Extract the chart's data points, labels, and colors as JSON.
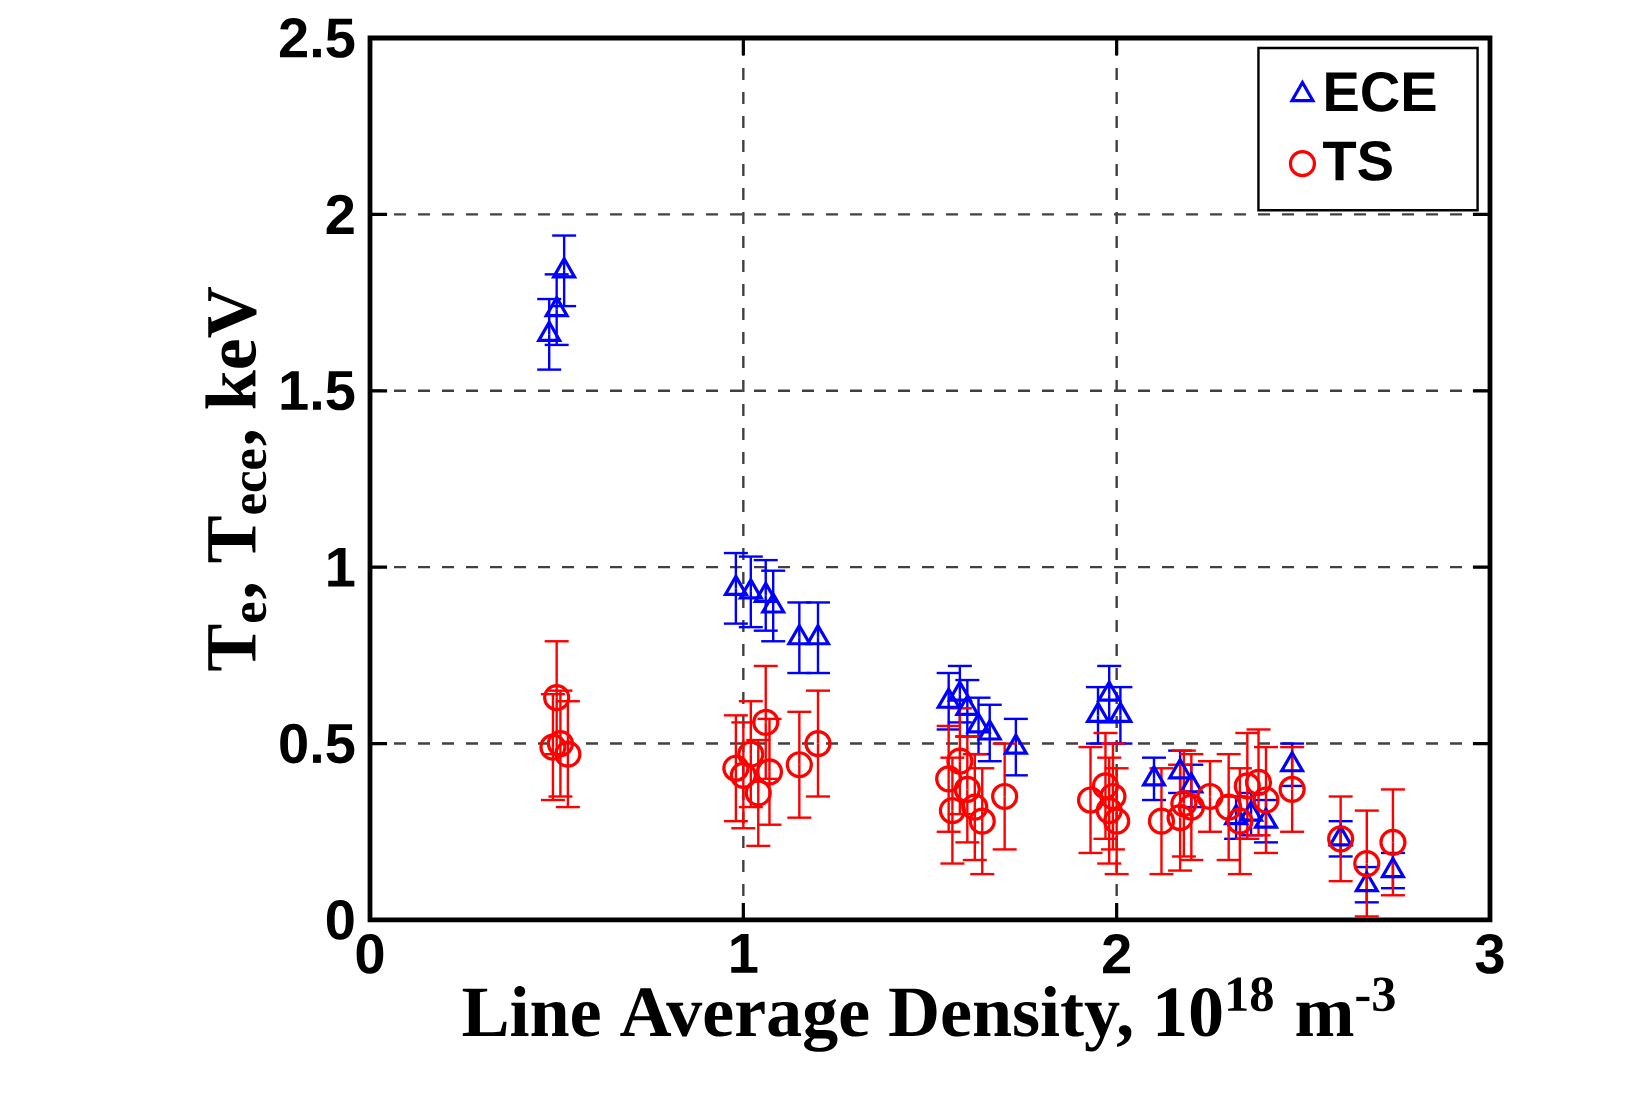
{
  "chart_data": {
    "type": "scatter",
    "xlabel": "Line Average Density, 10$^{18}$ m$^{-3}$",
    "ylabel": "T$_{e}$, T$_{ece}$, keV",
    "xlim": [
      0,
      3
    ],
    "ylim": [
      0,
      2.5
    ],
    "xticks": [
      0,
      1,
      2,
      3
    ],
    "yticks": [
      0,
      0.5,
      1,
      1.5,
      2,
      2.5
    ],
    "grid": true,
    "legend": "top right",
    "series": [
      {
        "name": "ECE",
        "color": "#0000ff",
        "marker": "triangle",
        "x": [
          0.48,
          0.5,
          0.52,
          0.98,
          1.02,
          1.06,
          1.08,
          1.15,
          1.2,
          1.55,
          1.58,
          1.6,
          1.63,
          1.66,
          1.73,
          1.95,
          1.98,
          2.01,
          2.1,
          2.17,
          2.2,
          2.32,
          2.36,
          2.4,
          2.47,
          2.6,
          2.67,
          2.74
        ],
        "values": [
          1.66,
          1.73,
          1.84,
          0.94,
          0.93,
          0.92,
          0.89,
          0.8,
          0.8,
          0.62,
          0.64,
          0.6,
          0.55,
          0.53,
          0.49,
          0.58,
          0.64,
          0.58,
          0.4,
          0.42,
          0.38,
          0.29,
          0.3,
          0.28,
          0.44,
          0.23,
          0.1,
          0.14
        ],
        "errors": [
          0.1,
          0.1,
          0.1,
          0.1,
          0.1,
          0.1,
          0.1,
          0.1,
          0.1,
          0.08,
          0.08,
          0.08,
          0.08,
          0.08,
          0.08,
          0.08,
          0.08,
          0.08,
          0.06,
          0.06,
          0.06,
          0.06,
          0.06,
          0.06,
          0.06,
          0.05,
          0.05,
          0.05
        ]
      },
      {
        "name": "TS",
        "color": "#ff0000",
        "marker": "circle",
        "x": [
          0.5,
          0.49,
          0.51,
          0.53,
          0.98,
          1.0,
          1.02,
          1.04,
          1.06,
          1.07,
          1.15,
          1.2,
          1.55,
          1.56,
          1.58,
          1.6,
          1.62,
          1.64,
          1.7,
          1.93,
          1.97,
          1.98,
          1.99,
          2.0,
          2.12,
          2.17,
          2.18,
          2.2,
          2.25,
          2.3,
          2.33,
          2.35,
          2.38,
          2.4,
          2.47,
          2.6,
          2.67,
          2.74
        ],
        "values": [
          0.63,
          0.49,
          0.5,
          0.47,
          0.43,
          0.41,
          0.47,
          0.36,
          0.56,
          0.42,
          0.44,
          0.5,
          0.4,
          0.31,
          0.45,
          0.37,
          0.32,
          0.28,
          0.35,
          0.34,
          0.38,
          0.31,
          0.35,
          0.28,
          0.28,
          0.29,
          0.33,
          0.32,
          0.35,
          0.32,
          0.28,
          0.38,
          0.39,
          0.34,
          0.37,
          0.23,
          0.16,
          0.22
        ],
        "errors": [
          0.16,
          0.15,
          0.15,
          0.15,
          0.15,
          0.15,
          0.15,
          0.15,
          0.16,
          0.15,
          0.15,
          0.15,
          0.15,
          0.15,
          0.15,
          0.15,
          0.15,
          0.15,
          0.15,
          0.15,
          0.15,
          0.15,
          0.15,
          0.15,
          0.15,
          0.15,
          0.15,
          0.15,
          0.1,
          0.15,
          0.15,
          0.15,
          0.15,
          0.15,
          0.12,
          0.12,
          0.15,
          0.15
        ]
      }
    ]
  }
}
